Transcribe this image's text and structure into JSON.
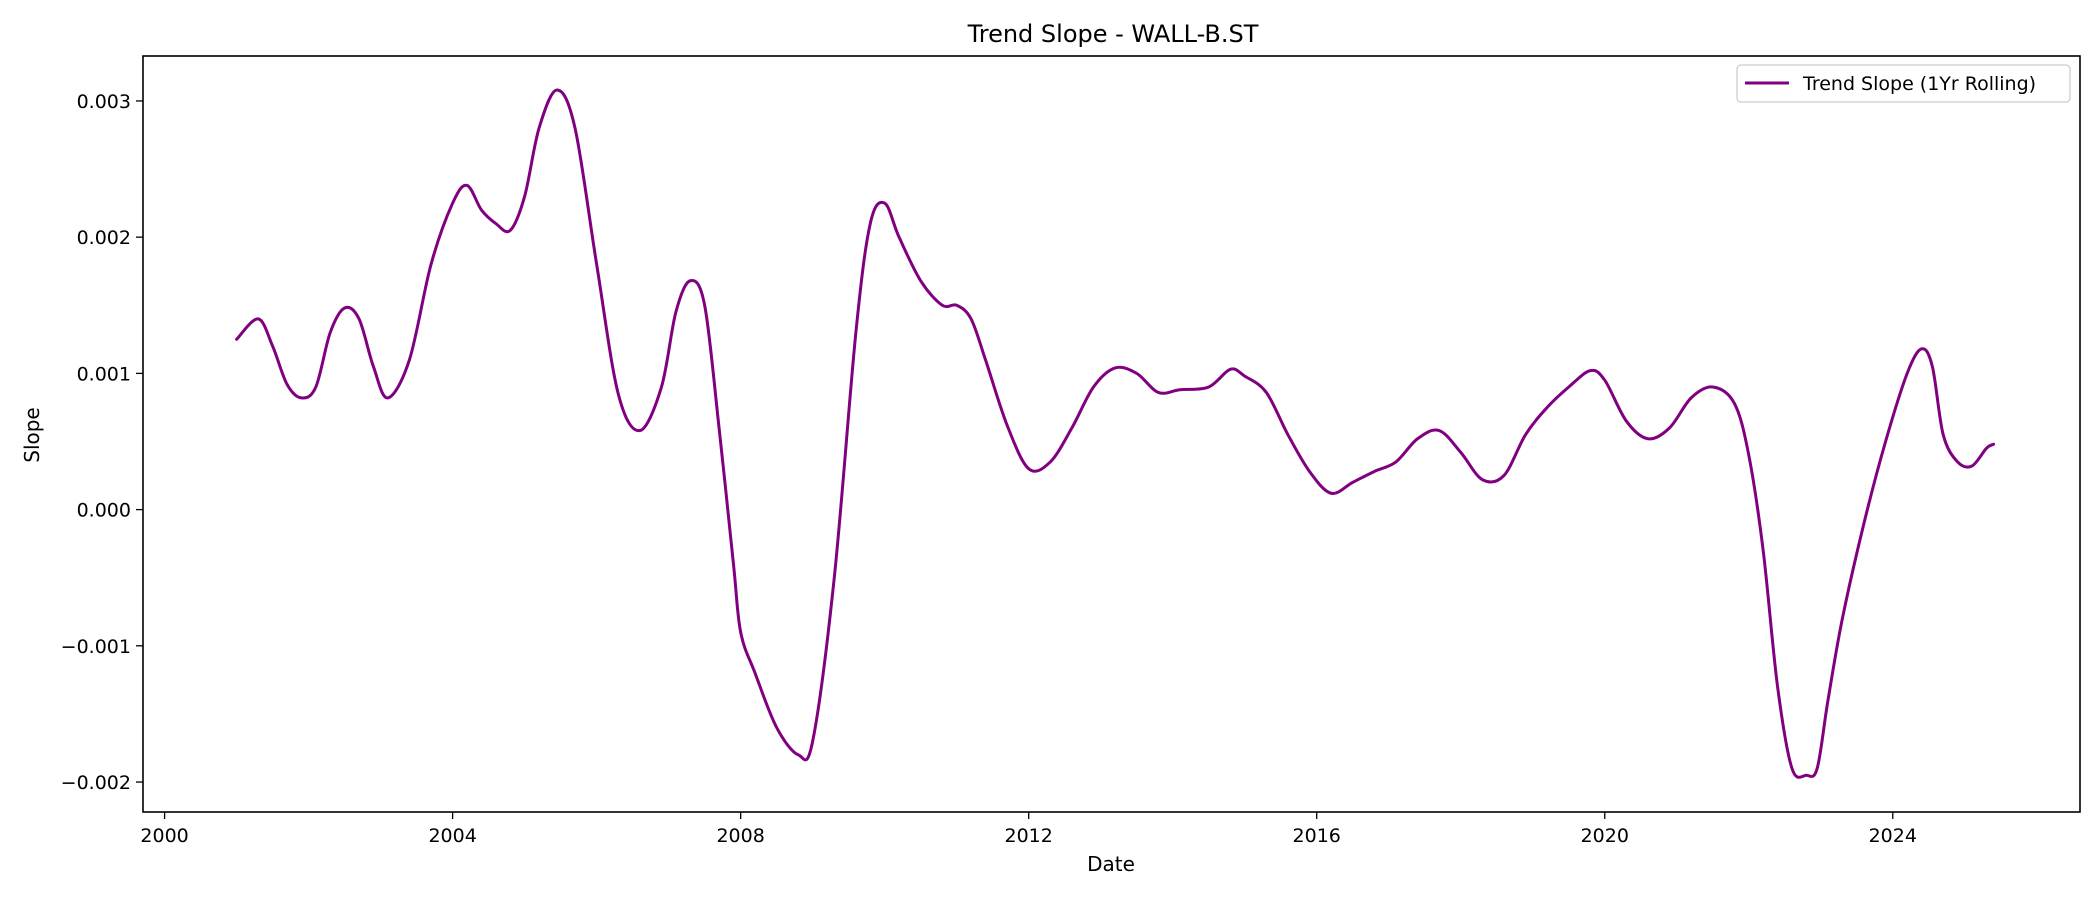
{
  "chart_data": {
    "type": "line",
    "title": "Trend Slope - WALL-B.ST",
    "xlabel": "Date",
    "ylabel": "Slope",
    "xlim": [
      1999.7,
      2026.6
    ],
    "ylim": [
      -0.00222,
      0.00333
    ],
    "x_ticks": [
      2000,
      2004,
      2008,
      2012,
      2016,
      2020,
      2024
    ],
    "x_tick_labels": [
      "2000",
      "2004",
      "2008",
      "2012",
      "2016",
      "2020",
      "2024"
    ],
    "y_ticks": [
      0.003,
      0.002,
      0.001,
      0.0,
      -0.001,
      -0.002
    ],
    "y_tick_labels": [
      "0.003",
      "0.002",
      "0.001",
      "0.000",
      "−0.001",
      "−0.002"
    ],
    "grid": false,
    "legend_position": "upper-right",
    "color": "#800080",
    "series": [
      {
        "name": "Trend Slope (1Yr Rolling)",
        "x": [
          2001.0,
          2001.3,
          2001.5,
          2001.7,
          2001.9,
          2002.1,
          2002.3,
          2002.5,
          2002.7,
          2002.9,
          2003.1,
          2003.4,
          2003.7,
          2004.0,
          2004.2,
          2004.4,
          2004.6,
          2004.8,
          2005.0,
          2005.2,
          2005.45,
          2005.7,
          2006.0,
          2006.3,
          2006.6,
          2006.9,
          2007.1,
          2007.3,
          2007.5,
          2007.7,
          2007.9,
          2008.0,
          2008.2,
          2008.5,
          2008.8,
          2009.0,
          2009.3,
          2009.6,
          2009.8,
          2010.0,
          2010.2,
          2010.5,
          2010.8,
          2011.0,
          2011.2,
          2011.4,
          2011.7,
          2012.0,
          2012.3,
          2012.6,
          2012.9,
          2013.2,
          2013.5,
          2013.8,
          2014.1,
          2014.5,
          2014.8,
          2015.0,
          2015.3,
          2015.6,
          2015.9,
          2016.2,
          2016.5,
          2016.8,
          2017.1,
          2017.4,
          2017.7,
          2018.0,
          2018.3,
          2018.6,
          2018.9,
          2019.2,
          2019.5,
          2019.8,
          2020.0,
          2020.3,
          2020.6,
          2020.9,
          2021.2,
          2021.5,
          2021.8,
          2022.0,
          2022.2,
          2022.4,
          2022.6,
          2022.8,
          2022.95,
          2023.1,
          2023.3,
          2023.6,
          2023.9,
          2024.2,
          2024.4,
          2024.55,
          2024.7,
          2024.9,
          2025.1,
          2025.3,
          2025.4
        ],
        "values": [
          0.00125,
          0.0014,
          0.0012,
          0.00092,
          0.00082,
          0.0009,
          0.0013,
          0.00148,
          0.0014,
          0.00105,
          0.00082,
          0.0011,
          0.0018,
          0.00225,
          0.00238,
          0.0022,
          0.0021,
          0.00205,
          0.0023,
          0.0028,
          0.00308,
          0.0028,
          0.0018,
          0.00085,
          0.00058,
          0.0009,
          0.00145,
          0.00168,
          0.0015,
          0.0006,
          -0.0004,
          -0.0009,
          -0.0012,
          -0.0016,
          -0.0018,
          -0.0017,
          -0.0005,
          0.0013,
          0.0021,
          0.00225,
          0.002,
          0.00168,
          0.0015,
          0.0015,
          0.0014,
          0.0011,
          0.00062,
          0.0003,
          0.00035,
          0.0006,
          0.0009,
          0.00104,
          0.001,
          0.00086,
          0.00088,
          0.0009,
          0.00103,
          0.00098,
          0.00086,
          0.00055,
          0.00028,
          0.00012,
          0.0002,
          0.00028,
          0.00035,
          0.00052,
          0.00058,
          0.00042,
          0.00022,
          0.00025,
          0.00055,
          0.00075,
          0.0009,
          0.00102,
          0.00095,
          0.00065,
          0.00052,
          0.0006,
          0.00082,
          0.0009,
          0.00078,
          0.0004,
          -0.0003,
          -0.0013,
          -0.0019,
          -0.00195,
          -0.0019,
          -0.0014,
          -0.0008,
          -0.0001,
          0.0005,
          0.001,
          0.00118,
          0.00105,
          0.00055,
          0.00035,
          0.00032,
          0.00045,
          0.00048
        ]
      }
    ]
  }
}
